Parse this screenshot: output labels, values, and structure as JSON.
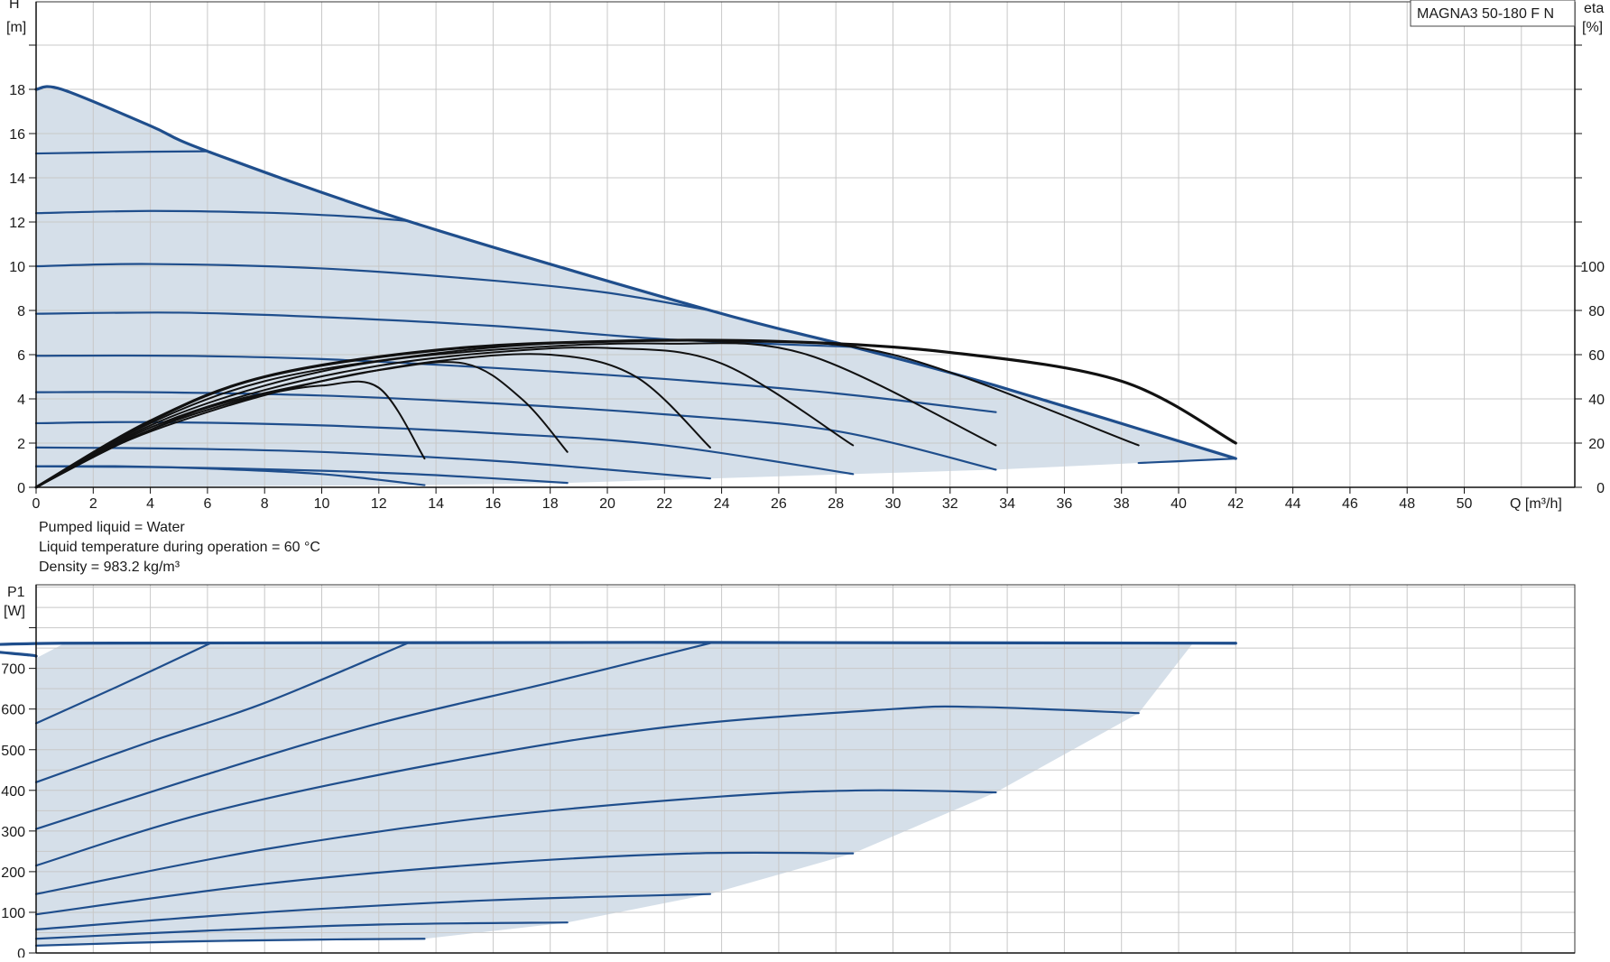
{
  "pump_model": "MAGNA3 50-180 F N",
  "notes": [
    "Pumped liquid = Water",
    "Liquid temperature during operation = 60 °C",
    "Density = 983.2 kg/m³"
  ],
  "colors": {
    "blue_curve": "#1f4e8c",
    "black_curve": "#111111",
    "area_fill": "#d5dfe9",
    "grid": "#c8c8c8"
  },
  "chart_data": [
    {
      "type": "line",
      "name": "head",
      "y_axis_label": [
        "H",
        "[m]"
      ],
      "y2_axis_label": [
        "eta",
        "[%]"
      ],
      "x_axis_label": "Q [m³/h]",
      "xlim": [
        0,
        54
      ],
      "ylim": [
        0,
        22
      ],
      "y2lim": [
        0,
        200
      ],
      "x_ticks": [
        0,
        2,
        4,
        6,
        8,
        10,
        12,
        14,
        16,
        18,
        20,
        22,
        24,
        26,
        28,
        30,
        32,
        34,
        36,
        38,
        40,
        42,
        44,
        46,
        48,
        50
      ],
      "y_ticks": [
        0,
        2,
        4,
        6,
        8,
        10,
        12,
        14,
        16,
        18
      ],
      "y2_ticks": [
        0,
        20,
        40,
        60,
        80,
        100
      ],
      "grid": true,
      "operating_area": [
        [
          0,
          18
        ],
        [
          0.9,
          18
        ],
        [
          4,
          16.35
        ],
        [
          6,
          15.2
        ],
        [
          13,
          12.05
        ],
        [
          23.6,
          8
        ],
        [
          28.6,
          6.35
        ],
        [
          33.6,
          4.6
        ],
        [
          42,
          1.4
        ],
        [
          40,
          1.1
        ],
        [
          38.6,
          1.1
        ],
        [
          33.6,
          0.8
        ],
        [
          28.6,
          0.6
        ],
        [
          23.6,
          0.4
        ],
        [
          18.6,
          0.2
        ],
        [
          13.6,
          0.1
        ],
        [
          0,
          0
        ]
      ],
      "series": [
        {
          "points": [
            [
              0,
              18
            ],
            [
              0.9,
              18
            ],
            [
              4,
              16.35
            ],
            [
              6,
              15.2
            ],
            [
              13,
              12.05
            ],
            [
              23.6,
              8
            ],
            [
              28.6,
              6.35
            ],
            [
              33.6,
              4.6
            ],
            [
              42,
              1.3
            ]
          ],
          "color": "#1f4e8c",
          "width": 3.2
        },
        {
          "points": [
            [
              0,
              15.1
            ],
            [
              4,
              15.18
            ],
            [
              6,
              15.2
            ]
          ],
          "color": "#1f4e8c",
          "width": 2.2
        },
        {
          "points": [
            [
              0,
              12.4
            ],
            [
              4,
              12.5
            ],
            [
              8,
              12.42
            ],
            [
              11,
              12.25
            ],
            [
              13,
              12.05
            ]
          ],
          "color": "#1f4e8c",
          "width": 2.2
        },
        {
          "points": [
            [
              0,
              10
            ],
            [
              4,
              10.1
            ],
            [
              10,
              9.9
            ],
            [
              16,
              9.35
            ],
            [
              20,
              8.8
            ],
            [
              23.6,
              8
            ]
          ],
          "color": "#1f4e8c",
          "width": 2.2
        },
        {
          "points": [
            [
              0,
              7.85
            ],
            [
              5,
              7.9
            ],
            [
              10,
              7.7
            ],
            [
              16,
              7.3
            ],
            [
              22,
              6.7
            ],
            [
              28.6,
              6.35
            ]
          ],
          "color": "#1f4e8c",
          "width": 2.2
        },
        {
          "points": [
            [
              0,
              5.95
            ],
            [
              5,
              5.95
            ],
            [
              10,
              5.8
            ],
            [
              16,
              5.4
            ],
            [
              22,
              4.9
            ],
            [
              28,
              4.25
            ],
            [
              33.6,
              3.4
            ]
          ],
          "color": "#1f4e8c",
          "width": 2.2
        },
        {
          "points": [
            [
              0,
              4.3
            ],
            [
              4,
              4.3
            ],
            [
              10,
              4.15
            ],
            [
              16,
              3.8
            ],
            [
              22,
              3.3
            ],
            [
              28,
              2.55
            ],
            [
              33.6,
              0.8
            ]
          ],
          "color": "#1f4e8c",
          "width": 2.2
        },
        {
          "points": [
            [
              0,
              2.9
            ],
            [
              4,
              2.95
            ],
            [
              10,
              2.8
            ],
            [
              16,
              2.45
            ],
            [
              22,
              1.9
            ],
            [
              28.6,
              0.6
            ]
          ],
          "color": "#1f4e8c",
          "width": 2.2
        },
        {
          "points": [
            [
              0,
              1.8
            ],
            [
              5,
              1.75
            ],
            [
              10,
              1.6
            ],
            [
              16,
              1.2
            ],
            [
              20,
              0.8
            ],
            [
              23.6,
              0.4
            ]
          ],
          "color": "#1f4e8c",
          "width": 2.2
        },
        {
          "points": [
            [
              0,
              0.95
            ],
            [
              5,
              0.9
            ],
            [
              10,
              0.75
            ],
            [
              14,
              0.55
            ],
            [
              18.6,
              0.2
            ]
          ],
          "color": "#1f4e8c",
          "width": 2.2
        },
        {
          "points": [
            [
              0,
              0
            ],
            [
              0,
              0
            ]
          ],
          "color": "#1f4e8c",
          "width": 2.2
        }
      ],
      "blue_extra": [
        {
          "points": [
            [
              0,
              0.95
            ],
            [
              3,
              0.95
            ],
            [
              6,
              0.85
            ],
            [
              10,
              0.6
            ],
            [
              13.6,
              0.1
            ]
          ],
          "color": "#1f4e8c",
          "width": 2.2
        },
        {
          "points": [
            [
              0,
              0.95
            ],
            [
              0,
              0.95
            ]
          ],
          "color": "#1f4e8c",
          "width": 2.2
        },
        {
          "points": [
            [
              38.6,
              1.1
            ],
            [
              42,
              1.3
            ]
          ],
          "color": "#1f4e8c",
          "width": 2.2
        }
      ],
      "eta_series": [
        {
          "points": [
            [
              0,
              0
            ],
            [
              2,
              14
            ],
            [
              4,
              26
            ],
            [
              6,
              35
            ],
            [
              8,
              42
            ],
            [
              10,
              46
            ],
            [
              12,
              45
            ],
            [
              13.6,
              13
            ]
          ],
          "apex": [
            11,
            46
          ],
          "end": [
            13.6,
            13
          ]
        },
        {
          "points": [
            [
              0,
              0
            ],
            [
              3,
              20
            ],
            [
              6,
              34
            ],
            [
              9,
              45
            ],
            [
              12,
              53
            ],
            [
              15,
              56
            ],
            [
              17,
              40
            ],
            [
              18.6,
              16
            ]
          ],
          "end": [
            18.6,
            16
          ]
        },
        {
          "points": [
            [
              0,
              0
            ],
            [
              3,
              20
            ],
            [
              6,
              36
            ],
            [
              10,
              48
            ],
            [
              14,
              57
            ],
            [
              18,
              60
            ],
            [
              21,
              50
            ],
            [
              23.6,
              18
            ]
          ],
          "end": [
            23.6,
            18
          ]
        },
        {
          "points": [
            [
              0,
              0
            ],
            [
              4,
              27
            ],
            [
              8,
              44
            ],
            [
              12,
              55
            ],
            [
              16,
              61
            ],
            [
              20,
              63
            ],
            [
              24,
              56
            ],
            [
              28.6,
              19
            ]
          ],
          "end": [
            28.6,
            19
          ]
        },
        {
          "points": [
            [
              0,
              0
            ],
            [
              4,
              28
            ],
            [
              8,
              46
            ],
            [
              12,
              57
            ],
            [
              17,
              63
            ],
            [
              22,
              65
            ],
            [
              27,
              60
            ],
            [
              33.6,
              19
            ]
          ],
          "end": [
            33.6,
            19
          ]
        },
        {
          "points": [
            [
              0,
              0
            ],
            [
              4,
              29
            ],
            [
              8,
              48
            ],
            [
              13,
              59
            ],
            [
              18,
              65
            ],
            [
              24,
              66
            ],
            [
              30,
              60
            ],
            [
              38.6,
              19
            ]
          ],
          "end": [
            38.6,
            19
          ]
        },
        {
          "points": [
            [
              0,
              0
            ],
            [
              4,
              30
            ],
            [
              8,
              50
            ],
            [
              14,
              62
            ],
            [
              20,
              66
            ],
            [
              26,
              66
            ],
            [
              32,
              61
            ],
            [
              38,
              48
            ],
            [
              42,
              20
            ]
          ],
          "end": [
            42,
            20
          ]
        }
      ]
    },
    {
      "type": "line",
      "name": "power",
      "y_axis_label": [
        "P1",
        "[W]"
      ],
      "xlim": [
        0,
        54
      ],
      "ylim": [
        0,
        900
      ],
      "y_ticks": [
        0,
        100,
        200,
        300,
        400,
        500,
        600,
        700
      ],
      "grid": true,
      "operating_area": [
        [
          0,
          725
        ],
        [
          1,
          762
        ],
        [
          42,
          762
        ],
        [
          40.5,
          762
        ],
        [
          38.6,
          590
        ],
        [
          33.6,
          395
        ],
        [
          28.6,
          245
        ],
        [
          23.6,
          145
        ],
        [
          18.6,
          75
        ],
        [
          13.6,
          35
        ],
        [
          0,
          18
        ]
      ],
      "series": [
        {
          "points": [
            [
              0,
              730
            ],
            [
              0.9,
              762
            ],
            [
              42,
              762
            ]
          ],
          "color": "#1f4e8c",
          "width": 3.2
        },
        {
          "points": [
            [
              0,
              565
            ],
            [
              3,
              660
            ],
            [
              6.1,
              762
            ]
          ],
          "color": "#1f4e8c",
          "width": 2.2
        },
        {
          "points": [
            [
              0,
              420
            ],
            [
              4,
              520
            ],
            [
              8,
              615
            ],
            [
              13,
              762
            ]
          ],
          "color": "#1f4e8c",
          "width": 2.2
        },
        {
          "points": [
            [
              0,
              305
            ],
            [
              6,
              440
            ],
            [
              12,
              565
            ],
            [
              18,
              665
            ],
            [
              23.6,
              762
            ]
          ],
          "color": "#1f4e8c",
          "width": 2.2
        },
        {
          "points": [
            [
              0,
              215
            ],
            [
              6,
              345
            ],
            [
              14,
              465
            ],
            [
              22,
              555
            ],
            [
              30,
              600
            ],
            [
              33,
              605
            ],
            [
              38.6,
              590
            ]
          ],
          "color": "#1f4e8c",
          "width": 2.2
        },
        {
          "points": [
            [
              0,
              145
            ],
            [
              8,
              255
            ],
            [
              16,
              335
            ],
            [
              24,
              385
            ],
            [
              29,
              400
            ],
            [
              33.6,
              395
            ]
          ],
          "color": "#1f4e8c",
          "width": 2.2
        },
        {
          "points": [
            [
              0,
              95
            ],
            [
              8,
              170
            ],
            [
              16,
              220
            ],
            [
              23,
              245
            ],
            [
              28.6,
              245
            ]
          ],
          "color": "#1f4e8c",
          "width": 2.2
        },
        {
          "points": [
            [
              0,
              58
            ],
            [
              8,
              100
            ],
            [
              16,
              130
            ],
            [
              23.6,
              145
            ]
          ],
          "color": "#1f4e8c",
          "width": 2.2
        },
        {
          "points": [
            [
              0,
              35
            ],
            [
              6,
              55
            ],
            [
              12,
              70
            ],
            [
              18.6,
              75
            ]
          ],
          "color": "#1f4e8c",
          "width": 2.2
        },
        {
          "points": [
            [
              0,
              18
            ],
            [
              5,
              28
            ],
            [
              10,
              33
            ],
            [
              13.6,
              35
            ]
          ],
          "color": "#1f4e8c",
          "width": 2.2
        }
      ]
    }
  ]
}
